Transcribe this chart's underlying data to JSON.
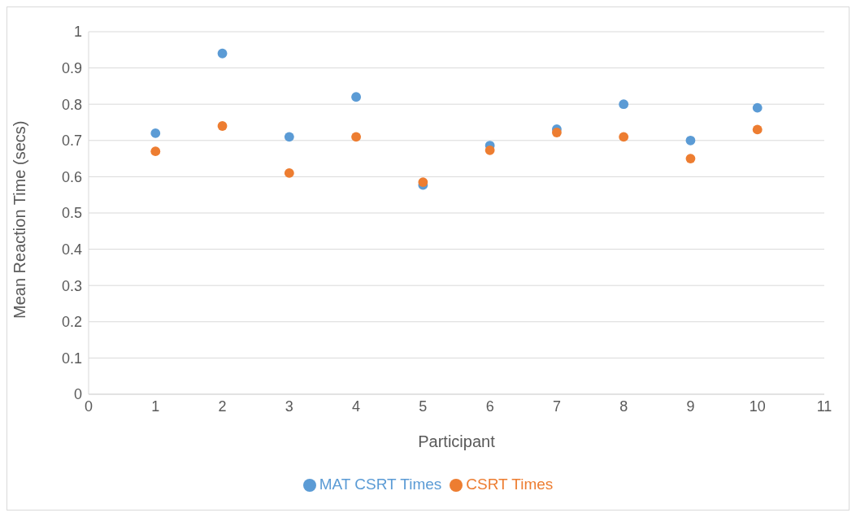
{
  "chart_data": {
    "type": "scatter",
    "xlabel": "Participant",
    "ylabel": "Mean Reaction Time (secs)",
    "x": [
      1,
      2,
      3,
      4,
      5,
      6,
      7,
      8,
      9,
      10
    ],
    "series": [
      {
        "name": "MAT CSRT Times",
        "color": "#5b9bd5",
        "values": [
          0.72,
          0.94,
          0.71,
          0.82,
          0.577,
          0.686,
          0.731,
          0.8,
          0.7,
          0.79
        ]
      },
      {
        "name": "CSRT Times",
        "color": "#ed7d31",
        "values": [
          0.67,
          0.74,
          0.61,
          0.71,
          0.585,
          0.673,
          0.722,
          0.71,
          0.65,
          0.73
        ]
      }
    ],
    "xlim": [
      0,
      11
    ],
    "xticks": [
      0,
      1,
      2,
      3,
      4,
      5,
      6,
      7,
      8,
      9,
      10,
      11
    ],
    "ylim": [
      0,
      1
    ],
    "yticks": [
      0,
      0.1,
      0.2,
      0.3,
      0.4,
      0.5,
      0.6,
      0.7,
      0.8,
      0.9,
      1
    ],
    "grid": "y",
    "legend": "bottom",
    "marker": "circle"
  }
}
